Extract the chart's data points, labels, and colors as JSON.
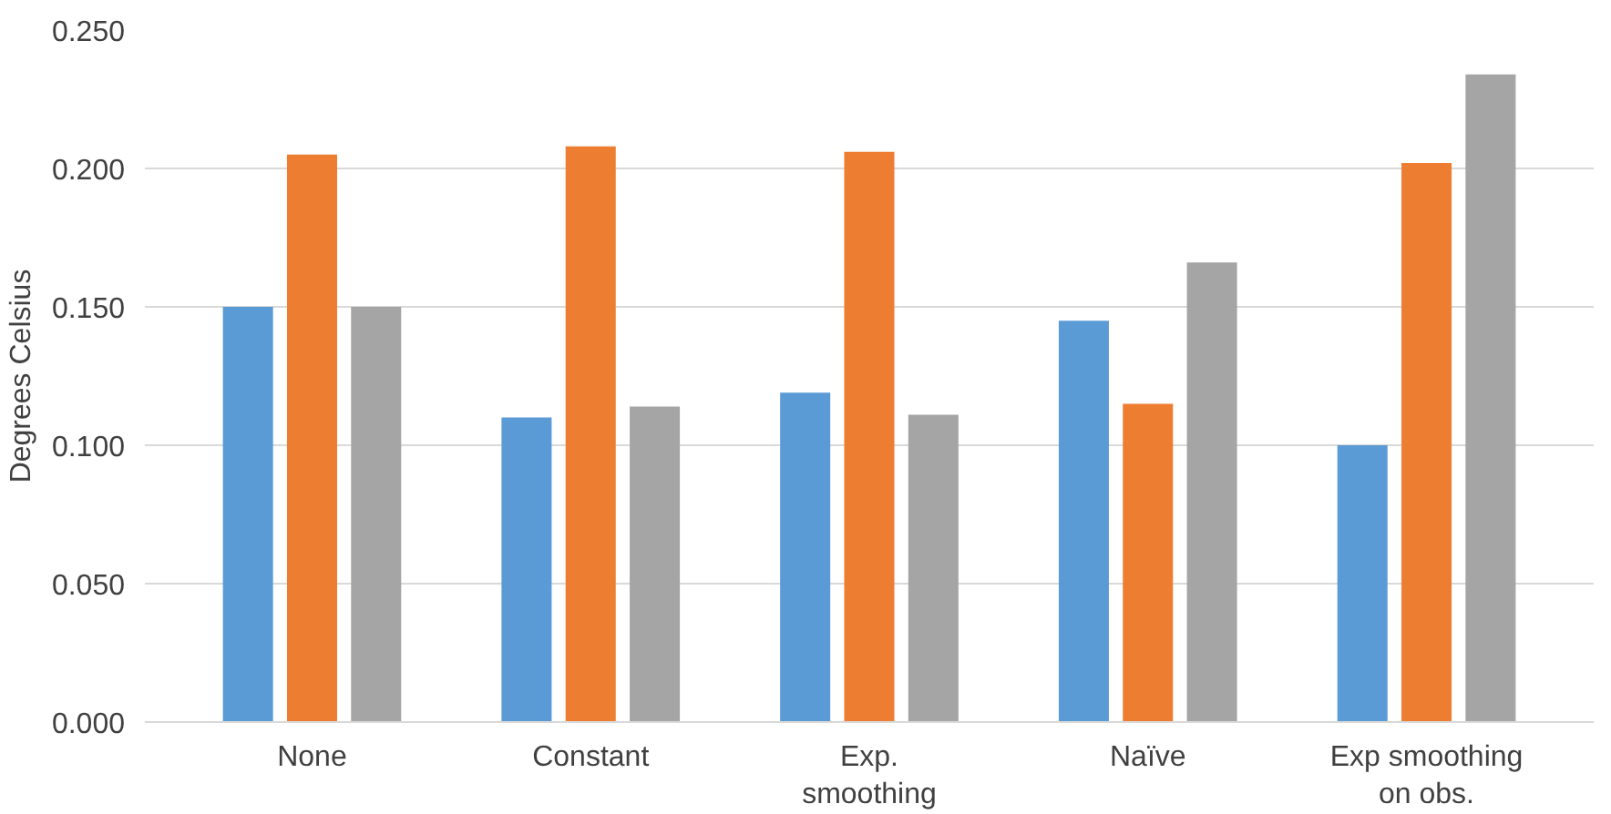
{
  "chart_data": {
    "type": "bar",
    "ylabel": "Degrees Celsius",
    "categories": [
      "None",
      "Constant",
      "Exp. smoothing",
      "Naïve",
      "Exp smoothing on obs."
    ],
    "series": [
      {
        "color": "#5b9bd5",
        "values": [
          0.15,
          0.11,
          0.119,
          0.145,
          0.1
        ]
      },
      {
        "color": "#ed7d31",
        "values": [
          0.205,
          0.208,
          0.206,
          0.115,
          0.202
        ]
      },
      {
        "color": "#a5a5a5",
        "values": [
          0.15,
          0.114,
          0.111,
          0.166,
          0.234
        ]
      }
    ],
    "ylim": [
      0,
      0.25
    ],
    "yticks": [
      {
        "value": 0,
        "label": "0.000"
      },
      {
        "value": 0.05,
        "label": "0.050"
      },
      {
        "value": 0.1,
        "label": "0.100"
      },
      {
        "value": 0.15,
        "label": "0.150"
      },
      {
        "value": 0.2,
        "label": "0.200"
      },
      {
        "value": 0.25,
        "label": "0.250"
      }
    ],
    "grid": "y"
  }
}
